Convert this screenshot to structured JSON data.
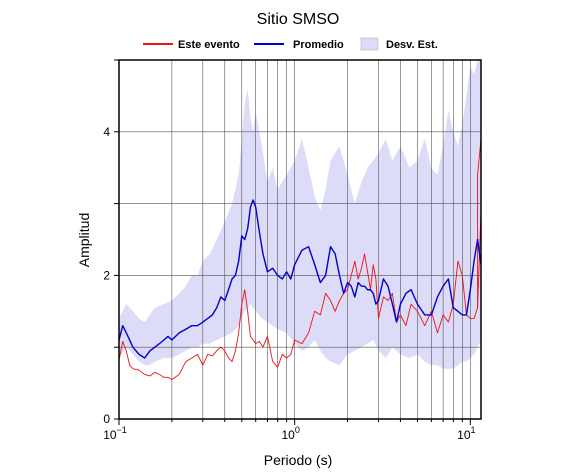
{
  "chart_data": {
    "type": "line",
    "title": "Sitio SMSO",
    "xlabel": "Periodo (s)",
    "ylabel": "Amplitud",
    "x_scale": "log",
    "xlim": [
      0.1,
      11.5
    ],
    "ylim": [
      0,
      5
    ],
    "grid": true,
    "legend_position": "top",
    "x_ticks": [
      {
        "value": 0.1,
        "base": "10",
        "exp": "−1"
      },
      {
        "value": 1,
        "base": "10",
        "exp": "0"
      },
      {
        "value": 10,
        "base": "10",
        "exp": "1"
      }
    ],
    "y_ticks": [
      {
        "value": 0,
        "label": "0"
      },
      {
        "value": 2,
        "label": "2"
      },
      {
        "value": 4,
        "label": "4"
      }
    ],
    "legend": [
      {
        "label": "Este evento",
        "color": "#ee1111",
        "kind": "line"
      },
      {
        "label": "Promedio",
        "color": "#0000cc",
        "kind": "line"
      },
      {
        "label": "Desv. Est.",
        "color": "#dcdcf8",
        "kind": "area"
      }
    ],
    "series": [
      {
        "name": "Este evento",
        "color": "#ee1111",
        "x": [
          0.1,
          0.105,
          0.11,
          0.115,
          0.12,
          0.13,
          0.14,
          0.15,
          0.16,
          0.17,
          0.18,
          0.19,
          0.2,
          0.22,
          0.24,
          0.26,
          0.28,
          0.3,
          0.32,
          0.34,
          0.36,
          0.38,
          0.4,
          0.42,
          0.44,
          0.46,
          0.48,
          0.5,
          0.52,
          0.54,
          0.56,
          0.58,
          0.6,
          0.63,
          0.66,
          0.7,
          0.75,
          0.8,
          0.85,
          0.9,
          0.95,
          1.0,
          1.1,
          1.2,
          1.3,
          1.4,
          1.5,
          1.6,
          1.7,
          1.8,
          1.9,
          2.0,
          2.1,
          2.2,
          2.3,
          2.4,
          2.5,
          2.6,
          2.7,
          2.8,
          2.9,
          3.0,
          3.2,
          3.4,
          3.6,
          3.8,
          4.0,
          4.3,
          4.6,
          5.0,
          5.5,
          6.0,
          6.5,
          7.0,
          7.5,
          8.0,
          8.5,
          9.0,
          9.5,
          10.0,
          10.5,
          11.0,
          11.5
        ],
        "y": [
          0.82,
          1.08,
          0.95,
          0.75,
          0.7,
          0.68,
          0.62,
          0.6,
          0.65,
          0.62,
          0.58,
          0.58,
          0.55,
          0.62,
          0.8,
          0.85,
          0.9,
          0.75,
          0.9,
          0.88,
          0.95,
          1.0,
          0.95,
          0.85,
          0.8,
          0.95,
          1.2,
          1.6,
          1.8,
          1.5,
          1.15,
          1.1,
          1.05,
          1.08,
          1.0,
          1.15,
          0.8,
          0.72,
          0.9,
          0.85,
          0.9,
          1.1,
          1.05,
          1.2,
          1.5,
          1.45,
          1.75,
          1.65,
          1.5,
          1.65,
          1.75,
          1.8,
          2.0,
          2.2,
          1.95,
          2.1,
          2.3,
          2.05,
          1.8,
          2.15,
          1.95,
          1.4,
          1.7,
          1.65,
          1.75,
          1.35,
          1.45,
          1.3,
          1.6,
          1.5,
          1.3,
          1.5,
          1.2,
          1.45,
          1.35,
          1.6,
          2.2,
          2.0,
          1.45,
          1.4,
          1.4,
          1.55,
          2.9
        ],
        "extra": {
          "x": [
            11.0,
            11.5
          ],
          "y": [
            3.4,
            3.9
          ]
        }
      },
      {
        "name": "Promedio",
        "color": "#0000cc",
        "x": [
          0.1,
          0.105,
          0.11,
          0.115,
          0.12,
          0.13,
          0.14,
          0.15,
          0.16,
          0.17,
          0.18,
          0.19,
          0.2,
          0.22,
          0.24,
          0.26,
          0.28,
          0.3,
          0.32,
          0.34,
          0.36,
          0.38,
          0.4,
          0.42,
          0.44,
          0.46,
          0.48,
          0.5,
          0.52,
          0.54,
          0.56,
          0.58,
          0.6,
          0.63,
          0.66,
          0.7,
          0.75,
          0.8,
          0.85,
          0.9,
          0.95,
          1.0,
          1.1,
          1.2,
          1.3,
          1.4,
          1.5,
          1.6,
          1.7,
          1.8,
          1.9,
          2.0,
          2.1,
          2.2,
          2.3,
          2.4,
          2.5,
          2.6,
          2.7,
          2.8,
          2.9,
          3.0,
          3.2,
          3.4,
          3.6,
          3.8,
          4.0,
          4.3,
          4.6,
          5.0,
          5.5,
          6.0,
          6.5,
          7.0,
          7.5,
          8.0,
          8.5,
          9.0,
          9.5,
          10.0,
          10.5,
          11.0,
          11.5
        ],
        "y": [
          1.1,
          1.3,
          1.2,
          1.1,
          1.0,
          0.9,
          0.85,
          0.95,
          1.0,
          1.05,
          1.1,
          1.15,
          1.1,
          1.2,
          1.25,
          1.3,
          1.3,
          1.35,
          1.4,
          1.45,
          1.55,
          1.7,
          1.65,
          1.8,
          1.95,
          2.0,
          2.2,
          2.55,
          2.5,
          2.65,
          2.95,
          3.05,
          2.95,
          2.6,
          2.3,
          2.05,
          2.1,
          2.0,
          1.95,
          2.05,
          1.95,
          2.15,
          2.35,
          2.4,
          2.15,
          1.9,
          2.0,
          2.4,
          2.3,
          2.0,
          1.75,
          1.9,
          1.85,
          1.7,
          1.9,
          1.85,
          1.85,
          1.8,
          1.8,
          1.75,
          1.6,
          1.65,
          1.95,
          1.85,
          1.6,
          1.35,
          1.6,
          1.75,
          1.8,
          1.6,
          1.45,
          1.45,
          1.7,
          1.85,
          1.95,
          1.55,
          1.5,
          1.45,
          1.45,
          1.8,
          2.2,
          2.5,
          2.15
        ]
      }
    ],
    "band": {
      "name": "Desv. Est.",
      "color": "#dcdcf8",
      "x": [
        0.1,
        0.11,
        0.12,
        0.13,
        0.14,
        0.15,
        0.16,
        0.18,
        0.2,
        0.22,
        0.24,
        0.26,
        0.28,
        0.3,
        0.33,
        0.36,
        0.4,
        0.44,
        0.48,
        0.5,
        0.52,
        0.54,
        0.56,
        0.58,
        0.6,
        0.65,
        0.7,
        0.75,
        0.8,
        0.9,
        1.0,
        1.1,
        1.2,
        1.3,
        1.4,
        1.5,
        1.6,
        1.8,
        2.0,
        2.2,
        2.4,
        2.6,
        2.8,
        3.0,
        3.3,
        3.6,
        4.0,
        4.5,
        5.0,
        5.5,
        6.0,
        6.5,
        7.0,
        7.5,
        8.0,
        8.5,
        9.0,
        9.5,
        10.0,
        10.5,
        11.0,
        11.5
      ],
      "upper": [
        1.4,
        1.6,
        1.5,
        1.4,
        1.35,
        1.45,
        1.55,
        1.6,
        1.65,
        1.75,
        1.85,
        2.0,
        2.0,
        2.2,
        2.3,
        2.5,
        2.75,
        3.0,
        3.4,
        3.9,
        4.4,
        4.6,
        4.2,
        4.0,
        4.3,
        3.8,
        3.3,
        3.5,
        3.2,
        3.4,
        3.6,
        3.9,
        3.5,
        3.1,
        2.9,
        3.2,
        3.6,
        3.8,
        3.4,
        3.0,
        3.3,
        3.5,
        3.6,
        3.7,
        3.9,
        3.6,
        3.8,
        3.5,
        3.6,
        3.9,
        3.5,
        3.4,
        3.8,
        4.3,
        4.0,
        3.8,
        4.1,
        4.5,
        4.9,
        4.8,
        5.0,
        5.0
      ],
      "lower": [
        0.85,
        1.0,
        0.9,
        0.8,
        0.75,
        0.75,
        0.8,
        0.85,
        0.85,
        0.9,
        0.95,
        1.0,
        1.0,
        1.05,
        1.05,
        1.1,
        1.15,
        1.2,
        1.3,
        1.4,
        1.5,
        1.55,
        1.6,
        1.55,
        1.5,
        1.4,
        1.35,
        1.3,
        1.25,
        1.2,
        1.05,
        0.95,
        1.0,
        1.1,
        0.95,
        0.85,
        0.8,
        0.75,
        0.9,
        0.95,
        1.0,
        1.05,
        1.1,
        0.95,
        0.85,
        1.0,
        0.9,
        0.85,
        0.9,
        0.8,
        0.75,
        0.75,
        0.7,
        0.7,
        0.7,
        0.75,
        0.8,
        0.8,
        0.85,
        0.9,
        1.0,
        1.1
      ]
    }
  }
}
